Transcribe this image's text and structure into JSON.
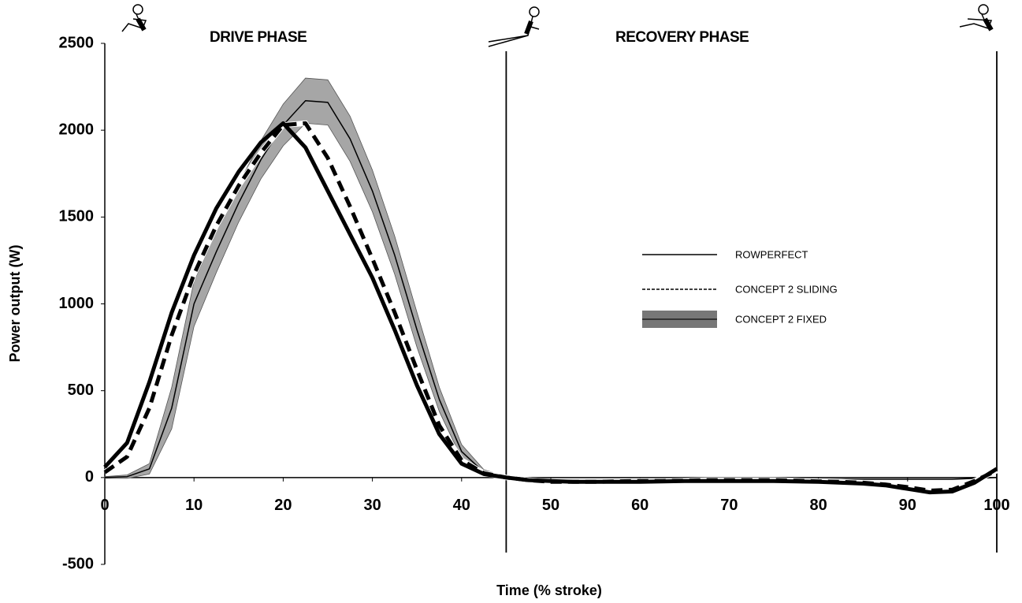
{
  "chart_data": {
    "type": "line",
    "x_label": "Time (% stroke)",
    "y_label": "Power output (W)",
    "phase_labels": [
      "DRIVE PHASE",
      "RECOVERY PHASE"
    ],
    "phase_boundaries": [
      45,
      100
    ],
    "xlim": [
      0,
      100
    ],
    "ylim": [
      -500,
      2500
    ],
    "xticks": [
      0,
      10,
      20,
      30,
      40,
      50,
      60,
      70,
      80,
      90,
      100
    ],
    "yticks": [
      -500,
      0,
      500,
      1000,
      1500,
      2000,
      2500
    ],
    "legend": "center-right",
    "x": [
      0,
      2.5,
      5,
      7.5,
      10,
      12.5,
      15,
      17.5,
      20,
      22.5,
      25,
      27.5,
      30,
      32.5,
      35,
      37.5,
      40,
      42.5,
      45,
      47.5,
      50,
      52.5,
      55,
      57.5,
      60,
      62.5,
      65,
      67.5,
      70,
      72.5,
      75,
      77.5,
      80,
      82.5,
      85,
      87.5,
      90,
      92.5,
      95,
      97.5,
      100
    ],
    "series": [
      {
        "name": "ROWPERFECT",
        "color": "#000000",
        "style": "solid",
        "values": [
          60,
          200,
          550,
          950,
          1280,
          1550,
          1760,
          1930,
          2040,
          1900,
          1650,
          1400,
          1150,
          850,
          530,
          250,
          80,
          20,
          0,
          -15,
          -20,
          -25,
          -25,
          -25,
          -25,
          -22,
          -20,
          -20,
          -20,
          -20,
          -20,
          -22,
          -25,
          -30,
          -35,
          -45,
          -65,
          -85,
          -80,
          -30,
          50
        ]
      },
      {
        "name": "CONCEPT 2 SLIDING",
        "color": "#000000",
        "style": "dashed",
        "values": [
          30,
          120,
          400,
          820,
          1170,
          1450,
          1680,
          1870,
          2030,
          2040,
          1840,
          1560,
          1260,
          950,
          620,
          300,
          100,
          25,
          0,
          -15,
          -25,
          -25,
          -25,
          -22,
          -20,
          -20,
          -18,
          -15,
          -15,
          -15,
          -15,
          -18,
          -22,
          -25,
          -30,
          -40,
          -55,
          -75,
          -70,
          -20,
          40
        ]
      },
      {
        "name": "CONCEPT 2 FIXED",
        "color": "#000000",
        "band_color": "#a6a6a6",
        "style": "band",
        "values": [
          0,
          5,
          50,
          400,
          1000,
          1300,
          1580,
          1830,
          2030,
          2170,
          2160,
          1950,
          1650,
          1280,
          850,
          450,
          150,
          30,
          0,
          -10,
          -15,
          -15,
          -15,
          -15,
          -15,
          -15,
          -12,
          -10,
          -10,
          -10,
          -10,
          -10,
          -10,
          -10,
          -10,
          -10,
          -10,
          -10,
          -10,
          -5,
          0
        ],
        "errors": [
          5,
          10,
          30,
          120,
          130,
          120,
          110,
          110,
          120,
          130,
          130,
          130,
          120,
          110,
          100,
          70,
          40,
          15,
          5,
          0,
          0,
          0,
          0,
          0,
          0,
          0,
          0,
          0,
          0,
          0,
          0,
          0,
          0,
          0,
          0,
          0,
          0,
          0,
          0,
          0,
          0
        ]
      }
    ]
  }
}
